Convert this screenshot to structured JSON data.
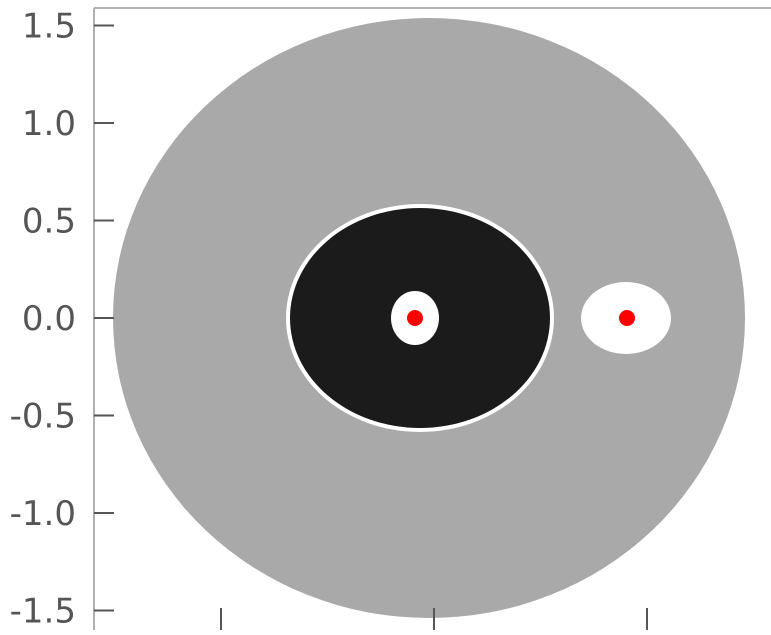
{
  "chart_data": {
    "type": "scatter",
    "title": "",
    "xlabel": "",
    "ylabel": "",
    "xlim": [
      -1.0,
      1.55
    ],
    "ylim": [
      -1.58,
      1.6
    ],
    "yticks": [
      1.5,
      1.0,
      0.5,
      0.0,
      -0.5,
      -1.0,
      -1.5
    ],
    "ytick_labels": [
      "1.5",
      "1.0",
      "0.5",
      "0.0",
      "-0.5",
      "-1.0",
      "-1.5"
    ],
    "xticks": [
      -0.5,
      0.0,
      0.5
    ],
    "xtick_labels": [],
    "grid": false,
    "regions": [
      {
        "name": "",
        "shape": "outer-disk",
        "cx": 0.0,
        "cy": 0.0,
        "rx": 1.5,
        "ry": 1.5,
        "color": "#a9a9a9"
      },
      {
        "name": "",
        "shape": "inner-disk",
        "cx": -0.05,
        "cy": 0.0,
        "rx": 0.6,
        "ry": 0.58,
        "color": "#1b1b1b"
      },
      {
        "name": "",
        "shape": "hole-near-primary",
        "cx": -0.05,
        "cy": 0.0,
        "rx": 0.11,
        "ry": 0.14,
        "color": "#ffffff"
      },
      {
        "name": "",
        "shape": "hole-near-secondary",
        "cx": 0.45,
        "cy": 0.0,
        "rx": 0.21,
        "ry": 0.18,
        "color": "#ffffff"
      }
    ],
    "series": [
      {
        "x": [
          -0.05,
          0.45
        ],
        "y": [
          0.0,
          0.0
        ],
        "color": "#ff0000"
      }
    ]
  }
}
